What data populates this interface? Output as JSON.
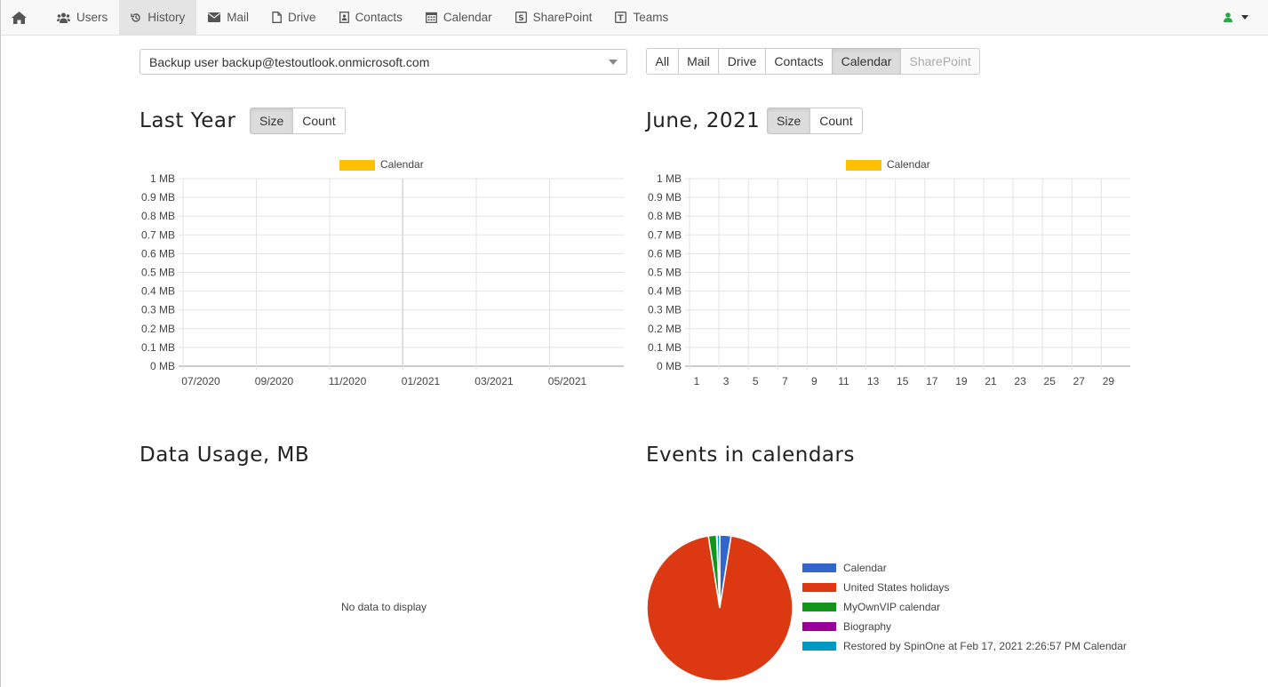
{
  "nav": {
    "items": [
      {
        "key": "users",
        "label": "Users",
        "icon": "users-icon"
      },
      {
        "key": "history",
        "label": "History",
        "icon": "history-icon",
        "active": true
      },
      {
        "key": "mail",
        "label": "Mail",
        "icon": "envelope-icon"
      },
      {
        "key": "drive",
        "label": "Drive",
        "icon": "file-icon"
      },
      {
        "key": "contacts",
        "label": "Contacts",
        "icon": "contact-card-icon"
      },
      {
        "key": "calendar",
        "label": "Calendar",
        "icon": "calendar-icon"
      },
      {
        "key": "sharepoint",
        "label": "SharePoint",
        "icon": "sharepoint-icon"
      },
      {
        "key": "teams",
        "label": "Teams",
        "icon": "teams-icon"
      }
    ],
    "user_icon_color": "#2aa748"
  },
  "user_select": {
    "value": "Backup user backup@testoutlook.onmicrosoft.com"
  },
  "service_filter": {
    "buttons": [
      {
        "label": "All"
      },
      {
        "label": "Mail"
      },
      {
        "label": "Drive"
      },
      {
        "label": "Contacts"
      },
      {
        "label": "Calendar",
        "active": true
      },
      {
        "label": "SharePoint",
        "disabled": true
      }
    ]
  },
  "last_year": {
    "title": "Last Year",
    "toggle": [
      {
        "label": "Size",
        "active": true
      },
      {
        "label": "Count"
      }
    ]
  },
  "month": {
    "title": "June, 2021",
    "toggle": [
      {
        "label": "Size",
        "active": true
      },
      {
        "label": "Count"
      }
    ]
  },
  "data_usage": {
    "title": "Data Usage, MB",
    "empty_text": "No data to display"
  },
  "events": {
    "title": "Events in calendars"
  },
  "chart_data": [
    {
      "type": "line",
      "legend": [
        {
          "name": "Calendar",
          "color": "#ffc000"
        }
      ],
      "legend_position": "top",
      "y_ticks": [
        "1 MB",
        "0.9 MB",
        "0.8 MB",
        "0.7 MB",
        "0.6 MB",
        "0.5 MB",
        "0.4 MB",
        "0.3 MB",
        "0.2 MB",
        "0.1 MB",
        "0 MB"
      ],
      "x_ticks": [
        "07/2020",
        "09/2020",
        "11/2020",
        "01/2021",
        "03/2021",
        "05/2021"
      ],
      "ylim": [
        0,
        1
      ],
      "series": [
        {
          "name": "Calendar",
          "values": []
        }
      ],
      "grid": true
    },
    {
      "type": "line",
      "legend": [
        {
          "name": "Calendar",
          "color": "#ffc000"
        }
      ],
      "legend_position": "top",
      "y_ticks": [
        "1 MB",
        "0.9 MB",
        "0.8 MB",
        "0.7 MB",
        "0.6 MB",
        "0.5 MB",
        "0.4 MB",
        "0.3 MB",
        "0.2 MB",
        "0.1 MB",
        "0 MB"
      ],
      "x_ticks": [
        "1",
        "3",
        "5",
        "7",
        "9",
        "11",
        "13",
        "15",
        "17",
        "19",
        "21",
        "23",
        "25",
        "27",
        "29"
      ],
      "ylim": [
        0,
        1
      ],
      "series": [
        {
          "name": "Calendar",
          "values": []
        }
      ],
      "grid": true
    },
    {
      "type": "pie",
      "legend_position": "right",
      "slices": [
        {
          "name": "Calendar",
          "value": 2.5,
          "color": "#3366cc"
        },
        {
          "name": "United States holidays",
          "value": 95,
          "color": "#dc3912"
        },
        {
          "name": "MyOwnVIP calendar",
          "value": 1.8,
          "color": "#109618"
        },
        {
          "name": "Biography",
          "value": 0.1,
          "color": "#990099"
        },
        {
          "name": "Restored by SpinOne at Feb 17, 2021 2:26:57 PM Calendar",
          "value": 0.6,
          "color": "#0099c6"
        }
      ]
    }
  ]
}
